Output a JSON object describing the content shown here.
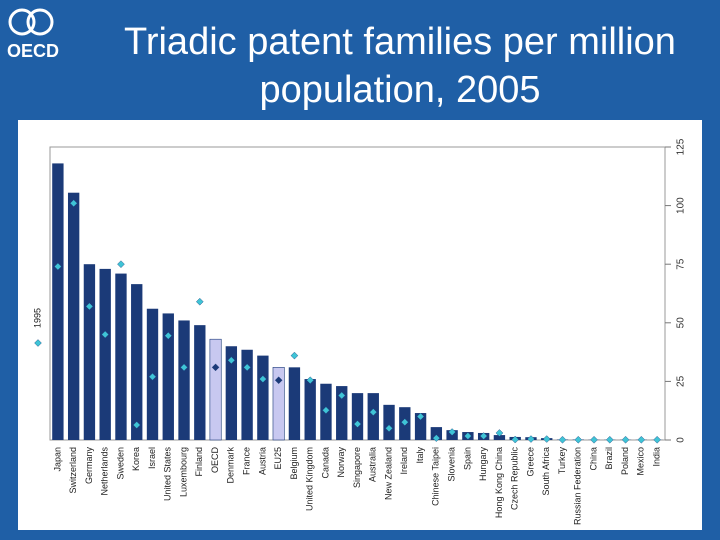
{
  "logo": "OECD",
  "chart_data": {
    "type": "bar",
    "title": "Triadic patent families per million population, 2005",
    "categories": [
      "Japan",
      "Switzerland",
      "Germany",
      "Netherlands",
      "Sweden",
      "Korea",
      "Israel",
      "United States",
      "Luxembourg",
      "Finland",
      "OECD",
      "Denmark",
      "France",
      "Austria",
      "EU25",
      "Belgium",
      "United Kingdom",
      "Canada",
      "Norway",
      "Singapore",
      "Australia",
      "New Zealand",
      "Ireland",
      "Italy",
      "Chinese Taipei",
      "Slovenia",
      "Spain",
      "Hungary",
      "Hong Kong China",
      "Czech Republic",
      "Greece",
      "South Africa",
      "Turkey",
      "Russian Federation",
      "China",
      "Brazil",
      "Poland",
      "Mexico",
      "India"
    ],
    "series": [
      {
        "mark": "bar",
        "color": "#1b3a78",
        "highlight_color": "#c8c8f0",
        "values": [
          118,
          105.5,
          75,
          73,
          71,
          66.5,
          56,
          54,
          51,
          49,
          43,
          40,
          38.5,
          36,
          31,
          31,
          26,
          24,
          23,
          20,
          20,
          15,
          14,
          11.5,
          5.5,
          4.2,
          3.4,
          3,
          2.1,
          1.3,
          1.2,
          0.8,
          0.2,
          0.2,
          0.1,
          0.1,
          0.1,
          0.1,
          0.05
        ]
      },
      {
        "name": "1995",
        "mark": "diamond",
        "color": "#3fc4d6",
        "highlight_color": "#1b3a78",
        "values": [
          74,
          101,
          57,
          45,
          75,
          6.4,
          27,
          44.5,
          31,
          59,
          31,
          34,
          31,
          26,
          25.5,
          36,
          25.5,
          12.7,
          19,
          6.8,
          11.9,
          5,
          7.6,
          10,
          0.8,
          3.4,
          1.7,
          1.7,
          3,
          0.2,
          0.4,
          0.4,
          0.1,
          0.1,
          0.1,
          0.1,
          0.1,
          0.1,
          0.1
        ]
      }
    ],
    "highlight_indices": [
      10,
      14
    ],
    "ylim": [
      0,
      125
    ],
    "yticks": [
      0,
      25,
      50,
      75,
      100,
      125
    ],
    "grid": false
  }
}
